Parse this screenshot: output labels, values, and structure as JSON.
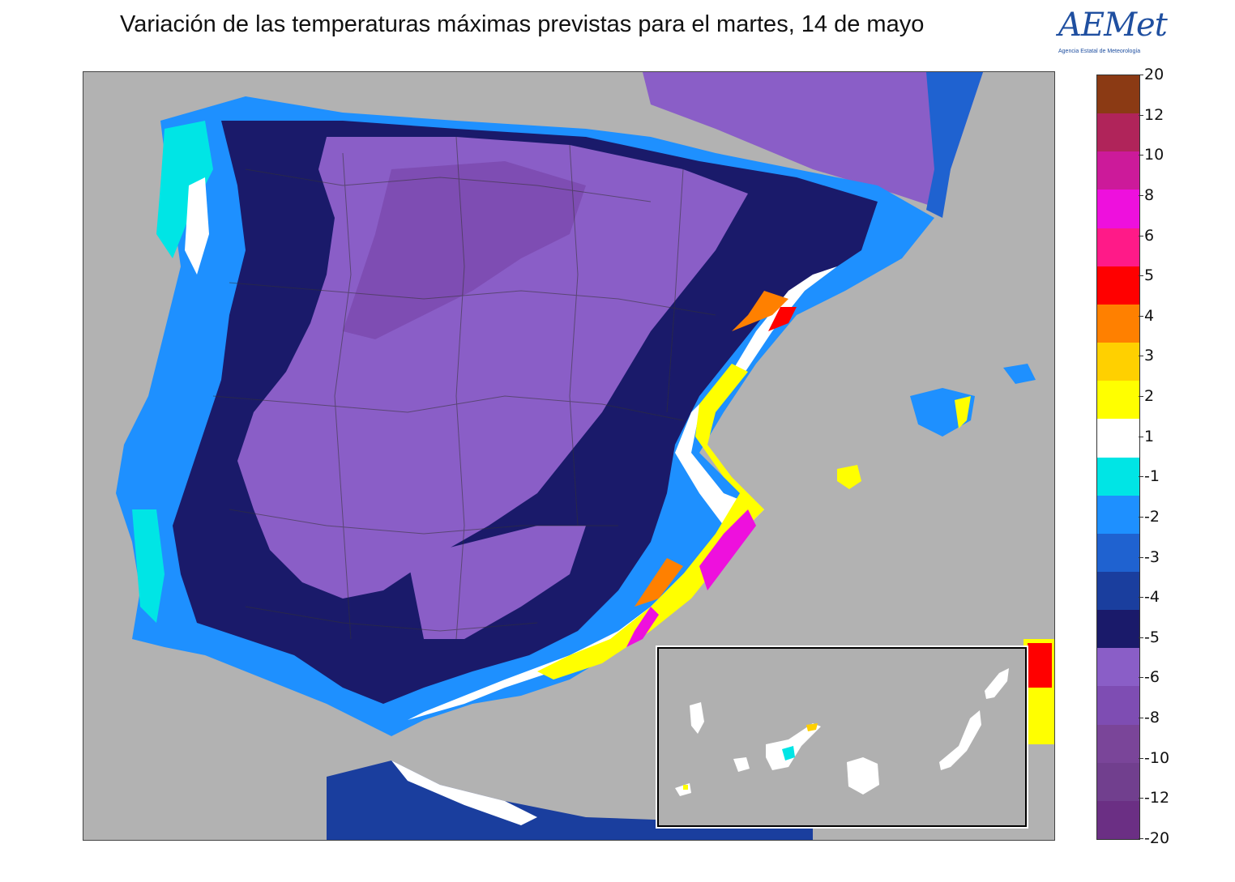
{
  "title": "Variación de las temperaturas máximas previstas para el martes, 14 de mayo",
  "logo": {
    "text": "AEMet",
    "subtitle": "Agencia Estatal de Meteorología"
  },
  "colors": {
    "sea": "#b2b2b2",
    "land_light": "#8a5ec7",
    "coast_cold": "#1e90ff"
  },
  "legend": {
    "labels": [
      "20",
      "12",
      "10",
      "8",
      "6",
      "5",
      "4",
      "3",
      "2",
      "1",
      "-1",
      "-2",
      "-3",
      "-4",
      "-5",
      "-6",
      "-8",
      "-10",
      "-12",
      "-20"
    ],
    "colors": [
      "#8b3a14",
      "#b0245a",
      "#cc1a9a",
      "#ee10dd",
      "#ff1a88",
      "#ff0000",
      "#ff8000",
      "#ffd000",
      "#ffff00",
      "#ffffff",
      "#00e5e5",
      "#1e90ff",
      "#1f62d0",
      "#1a3e9e",
      "#1a1a6a",
      "#8a5ec7",
      "#7e4db3",
      "#7a4599",
      "#713f8e",
      "#6b2f84"
    ]
  }
}
